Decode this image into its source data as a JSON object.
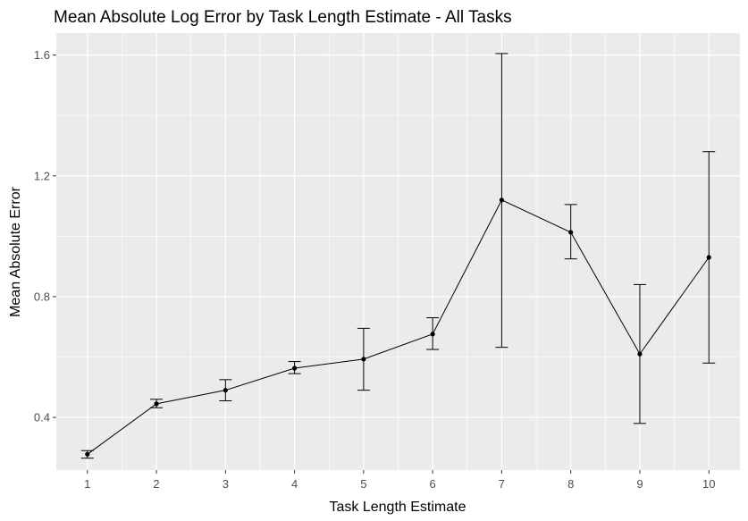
{
  "chart_data": {
    "type": "line",
    "title": "Mean Absolute Log Error by Task Length Estimate - All Tasks",
    "xlabel": "Task Length Estimate",
    "ylabel": "Mean Absolute Error",
    "x": [
      1,
      2,
      3,
      4,
      5,
      6,
      7,
      8,
      9,
      10
    ],
    "y": [
      0.278,
      0.445,
      0.49,
      0.563,
      0.593,
      0.676,
      1.12,
      1.013,
      0.61,
      0.93
    ],
    "error_low": [
      0.265,
      0.432,
      0.455,
      0.545,
      0.49,
      0.625,
      0.632,
      0.925,
      0.38,
      0.58
    ],
    "error_high": [
      0.29,
      0.46,
      0.525,
      0.585,
      0.695,
      0.73,
      1.605,
      1.105,
      0.84,
      1.28
    ],
    "x_ticks": [
      1,
      2,
      3,
      4,
      5,
      6,
      7,
      8,
      9,
      10
    ],
    "y_ticks": [
      0.4,
      0.8,
      1.2,
      1.6
    ],
    "y_tick_labels": [
      "0.4",
      "0.8",
      "1.2",
      "1.6"
    ],
    "xlim": [
      0.55,
      10.45
    ],
    "ylim": [
      0.2256,
      1.6728
    ],
    "grid": true,
    "panel_background": "#ebebeb",
    "grid_color": "#ffffff",
    "line_color": "#000000"
  }
}
